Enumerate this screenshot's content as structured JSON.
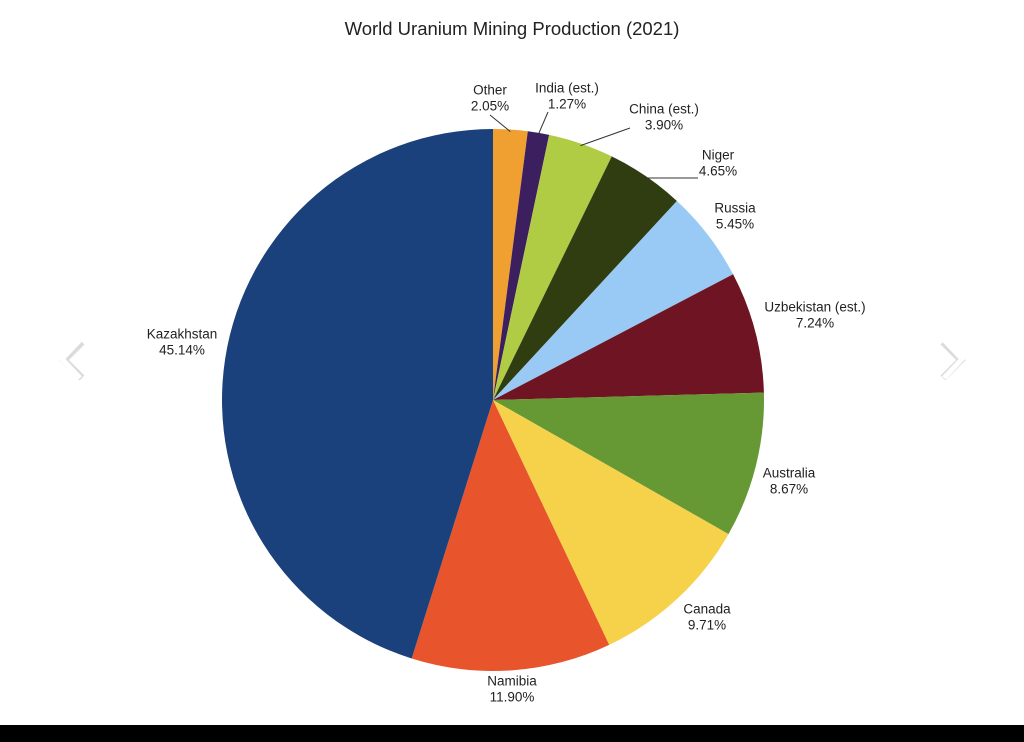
{
  "chart_data": {
    "type": "pie",
    "title": "World Uranium Mining Production (2021)",
    "categories": [
      "Other",
      "India (est.)",
      "China (est.)",
      "Niger",
      "Russia",
      "Uzbekistan (est.)",
      "Australia",
      "Canada",
      "Namibia",
      "Kazakhstan"
    ],
    "values": [
      2.05,
      1.27,
      3.9,
      4.65,
      5.45,
      7.24,
      8.67,
      9.71,
      11.9,
      45.14
    ],
    "value_labels": [
      "2.05%",
      "1.27%",
      "3.90%",
      "4.65%",
      "5.45%",
      "7.24%",
      "8.67%",
      "9.71%",
      "11.90%",
      "45.14%"
    ],
    "colors": [
      "#f0a030",
      "#3b1f5e",
      "#b0cc44",
      "#2f3d10",
      "#99c9f5",
      "#6e1422",
      "#669933",
      "#f5d24a",
      "#e8542c",
      "#1a417b"
    ]
  }
}
